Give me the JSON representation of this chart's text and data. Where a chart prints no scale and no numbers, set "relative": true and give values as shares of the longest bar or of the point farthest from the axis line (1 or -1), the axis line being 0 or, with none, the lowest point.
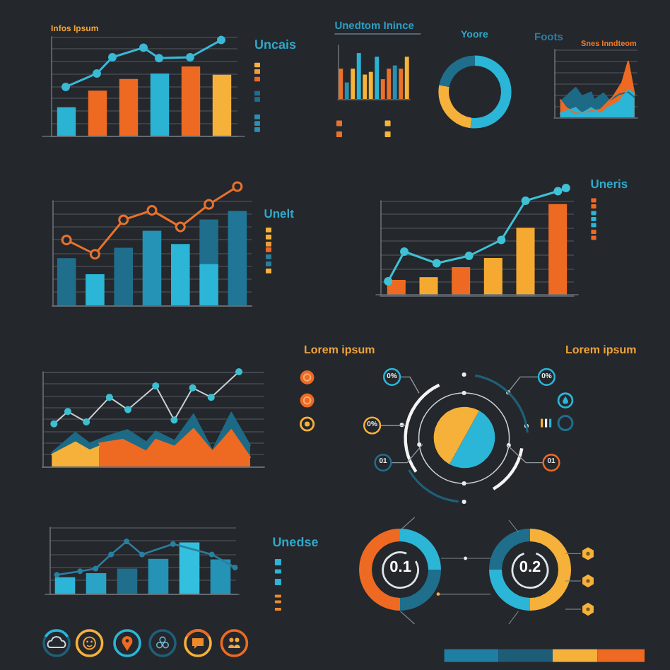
{
  "chart_data": [
    {
      "type": "bar",
      "title": "Infos Ipsum",
      "annotations": [
        "Uncais"
      ],
      "relative": true,
      "grid": "y",
      "categories": [
        null,
        null,
        null,
        null,
        null,
        null
      ],
      "colors": [
        "#2bb3d4",
        "#ee6a22",
        "#ee6a22",
        "#2bb3d4",
        "#ee6a22",
        "#f6b13a"
      ],
      "values": [
        0.41,
        0.65,
        0.82,
        0.9,
        1.0,
        0.88
      ]
    },
    {
      "type": "line",
      "relative": true,
      "marker": "circle",
      "categories": [
        null,
        null,
        null,
        null,
        null,
        null,
        null,
        null,
        null,
        null,
        null,
        null,
        null
      ],
      "color": "#3ab8d5",
      "values": [
        null,
        0.51,
        null,
        0.65,
        0.82,
        null,
        0.92,
        0.81,
        null,
        0.82,
        null,
        1.0,
        null
      ]
    },
    {
      "type": "bar",
      "title": "Unedtom Inince",
      "relative": true,
      "categories": [
        null,
        null,
        null,
        null,
        null,
        null,
        null,
        null,
        null,
        null,
        null,
        null
      ],
      "colors": [
        "#e8722c",
        "#2a8fb0",
        "#f5b43a",
        "#2bb3d4",
        "#f5b43a",
        "#f5b43a",
        "#2bb3d4",
        "#e8722c",
        "#e8722c",
        "#2a8fb0",
        "#e8722c",
        "#f5b43a"
      ],
      "values": [
        0.66,
        0.36,
        0.66,
        1.0,
        0.53,
        0.59,
        0.92,
        0.43,
        0.66,
        0.73,
        0.66,
        0.92
      ]
    },
    {
      "type": "donut",
      "title": "Yoore",
      "categories": [
        null,
        null,
        null
      ],
      "values": [
        52,
        26,
        22
      ],
      "colors": [
        "#2bb5d6",
        "#f6b13a",
        "#1f6e8c"
      ]
    },
    {
      "type": "area",
      "title": "Foots",
      "subtitle": "Snes Inndteom",
      "relative": true,
      "grid": "y",
      "categories": [
        null,
        null,
        null,
        null,
        null,
        null,
        null,
        null,
        null,
        null,
        null,
        null,
        null,
        null,
        null,
        null,
        null,
        null,
        null,
        null,
        null,
        null,
        null,
        null,
        null,
        null,
        null,
        null
      ],
      "series": [
        {
          "color": "#1d6a86",
          "values": [
            null,
            null,
            0.28,
            null,
            null,
            null,
            null,
            0.53,
            null,
            0.38,
            null,
            null,
            0.45,
            0.31,
            null,
            null,
            0.43,
            null,
            0.3,
            null,
            null,
            0.41,
            null,
            null,
            0.45,
            null,
            0.36,
            null
          ]
        },
        {
          "color": "#ee6a22",
          "values": [
            null,
            null,
            0.31,
            null,
            0.17,
            null,
            null,
            0.07,
            null,
            null,
            null,
            null,
            null,
            null,
            null,
            0.14,
            null,
            null,
            null,
            0.36,
            null,
            null,
            0.62,
            null,
            1.0,
            null,
            0.41,
            null
          ]
        },
        {
          "color": "#2bb5d6",
          "values": [
            null,
            null,
            0.07,
            null,
            null,
            null,
            null,
            0.17,
            null,
            0.07,
            null,
            null,
            0.17,
            null,
            null,
            0.07,
            null,
            null,
            0.19,
            null,
            null,
            0.28,
            null,
            null,
            0.49,
            null,
            0.42,
            null
          ]
        }
      ]
    },
    {
      "type": "bar",
      "annotations": [
        "Unelt"
      ],
      "relative": true,
      "stacked": true,
      "grid": "y",
      "categories": [
        null,
        null,
        null,
        null,
        null,
        null,
        null
      ],
      "series": [
        {
          "colors": [
            "#1f6e8c",
            "#2bb5d6",
            "#1f6e8c",
            "#2593b5",
            "#2bb5d6",
            "#2bb5d6",
            "#1f7696"
          ],
          "values": [
            0.5,
            0.33,
            0.61,
            0.79,
            0.65,
            0.44,
            1.0
          ]
        },
        {
          "color": "#1f6e8c",
          "values": [
            null,
            null,
            null,
            null,
            null,
            0.47,
            null
          ]
        }
      ]
    },
    {
      "type": "line",
      "relative": true,
      "marker": "circle",
      "categories": [
        null,
        null,
        null,
        null,
        null,
        null,
        null
      ],
      "color": "#e8722c",
      "values": [
        0.55,
        0.43,
        0.72,
        0.8,
        0.66,
        0.85,
        1.0
      ]
    },
    {
      "type": "bar",
      "annotations": [
        "Uneris"
      ],
      "relative": true,
      "grid": "y",
      "categories": [
        null,
        null,
        null,
        null,
        null,
        null
      ],
      "colors": [
        "#ee6a22",
        "#f6a931",
        "#ee6a22",
        "#f6a931",
        "#f6a931",
        "#ee6a22"
      ],
      "values": [
        0.17,
        0.2,
        0.31,
        0.41,
        0.74,
        1.0
      ]
    },
    {
      "type": "line",
      "relative": true,
      "marker": "circle",
      "categories": [
        null,
        null,
        null,
        null,
        null,
        null,
        null,
        null,
        null,
        null,
        null,
        null,
        null,
        null,
        null,
        null,
        null,
        null,
        null,
        null,
        null,
        null,
        null,
        null,
        null
      ],
      "color": "#3fc1d6",
      "values": [
        null,
        0.12,
        null,
        0.4,
        null,
        null,
        null,
        0.29,
        null,
        null,
        null,
        0.36,
        null,
        null,
        null,
        0.51,
        null,
        null,
        0.88,
        null,
        null,
        null,
        0.97,
        1.0,
        null
      ]
    },
    {
      "type": "area",
      "relative": true,
      "grid": "y",
      "categories": [
        null,
        null,
        null,
        null,
        null,
        null,
        null,
        null,
        null,
        null,
        null,
        null,
        null,
        null,
        null,
        null,
        null,
        null,
        null,
        null,
        null,
        null,
        null,
        null,
        null,
        null,
        null,
        null,
        null,
        null,
        null,
        null,
        null,
        null,
        null,
        null,
        null,
        null,
        null,
        null,
        null,
        null,
        null,
        null,
        null,
        null,
        null,
        null
      ],
      "series": [
        {
          "color": "#1d6a86",
          "values": [
            null,
            null,
            0.26,
            null,
            null,
            null,
            null,
            0.63,
            null,
            null,
            0.43,
            null,
            null,
            null,
            0.57,
            null,
            null,
            null,
            0.68,
            null,
            null,
            null,
            0.45,
            null,
            0.65,
            null,
            null,
            null,
            0.48,
            null,
            null,
            null,
            0.97,
            null,
            null,
            null,
            0.3,
            null,
            null,
            null,
            1.0,
            null,
            null,
            null,
            0.39,
            null,
            null,
            null
          ]
        },
        {
          "color": "#f6b13a",
          "values": [
            null,
            null,
            0.22,
            null,
            null,
            null,
            null,
            0.45,
            null,
            null,
            0.3,
            null,
            0.37,
            null,
            null,
            null,
            null,
            null,
            null,
            null,
            null,
            null,
            null,
            null,
            null,
            null,
            null,
            null,
            null,
            null,
            null,
            null,
            null,
            null,
            null,
            null,
            null,
            null,
            null,
            null,
            null,
            null,
            null,
            null,
            null,
            null,
            null,
            null
          ]
        },
        {
          "color": "#ee6a22",
          "values": [
            null,
            null,
            null,
            null,
            null,
            null,
            null,
            null,
            null,
            null,
            null,
            null,
            0.43,
            null,
            null,
            null,
            null,
            0.5,
            null,
            null,
            null,
            null,
            0.28,
            null,
            0.5,
            null,
            null,
            null,
            0.37,
            null,
            null,
            null,
            0.7,
            null,
            null,
            null,
            0.28,
            null,
            null,
            null,
            0.68,
            null,
            null,
            null,
            0.17,
            null,
            null,
            null
          ]
        }
      ]
    },
    {
      "type": "line",
      "relative": true,
      "marker": "circle",
      "categories": [
        null,
        null,
        null,
        null,
        null,
        null,
        null,
        null,
        null,
        null,
        null,
        null,
        null,
        null,
        null,
        null,
        null,
        null,
        null,
        null,
        null,
        null,
        null,
        null,
        null,
        null,
        null,
        null,
        null,
        null,
        null,
        null,
        null,
        null,
        null,
        null,
        null,
        null,
        null,
        null,
        null,
        null,
        null,
        null,
        null,
        null,
        null,
        null
      ],
      "color": "#c5d0d4",
      "values": [
        null,
        null,
        0.45,
        null,
        null,
        0.58,
        null,
        null,
        null,
        0.47,
        null,
        null,
        null,
        null,
        0.73,
        null,
        null,
        null,
        0.6,
        null,
        null,
        null,
        null,
        null,
        0.85,
        null,
        null,
        null,
        0.49,
        null,
        null,
        null,
        0.83,
        null,
        null,
        null,
        0.73,
        null,
        null,
        null,
        null,
        null,
        1.0,
        null,
        null,
        null,
        null,
        null
      ]
    },
    {
      "type": "pie",
      "title": "Lorem ipsum",
      "annotations": [
        "Lorem ipsum",
        "0%",
        "0%",
        "0%",
        "01",
        "01"
      ],
      "categories": [
        null,
        null
      ],
      "values": [
        50,
        50
      ],
      "colors": [
        "#2bb5d6",
        "#f6b13a"
      ]
    },
    {
      "type": "bar",
      "annotations": [
        "Unedse"
      ],
      "relative": true,
      "grid": "y",
      "categories": [
        null,
        null,
        null,
        null,
        null,
        null
      ],
      "colors": [
        "#2bb5d6",
        "#2aa3c6",
        "#1f6e8c",
        "#2593b5",
        "#33c0de",
        "#2593b5"
      ],
      "values": [
        0.32,
        0.4,
        0.49,
        0.68,
        1.0,
        0.67
      ]
    },
    {
      "type": "line",
      "relative": true,
      "marker": "circle",
      "categories": [
        null,
        null,
        null,
        null,
        null,
        null,
        null,
        null,
        null,
        null,
        null,
        null,
        null,
        null,
        null,
        null,
        null,
        null,
        null,
        null,
        null,
        null,
        null,
        null,
        null
      ],
      "color": "#2a7f9e",
      "values": [
        null,
        0.36,
        null,
        null,
        0.43,
        null,
        0.48,
        null,
        0.75,
        null,
        1.0,
        null,
        0.75,
        null,
        null,
        null,
        0.95,
        null,
        null,
        null,
        null,
        0.75,
        null,
        null,
        0.5
      ]
    },
    {
      "type": "donut",
      "annotations": [
        "0.1"
      ],
      "categories": [
        null,
        null,
        null
      ],
      "values": [
        25,
        25,
        50
      ],
      "colors": [
        "#2bb5d6",
        "#1f6e8c",
        "#ee6a22"
      ]
    },
    {
      "type": "donut",
      "annotations": [
        "0.2"
      ],
      "categories": [
        null,
        null,
        null
      ],
      "values": [
        50,
        25,
        25
      ],
      "colors": [
        "#f6b13a",
        "#2bb5d6",
        "#1f6e8c"
      ]
    }
  ]
}
